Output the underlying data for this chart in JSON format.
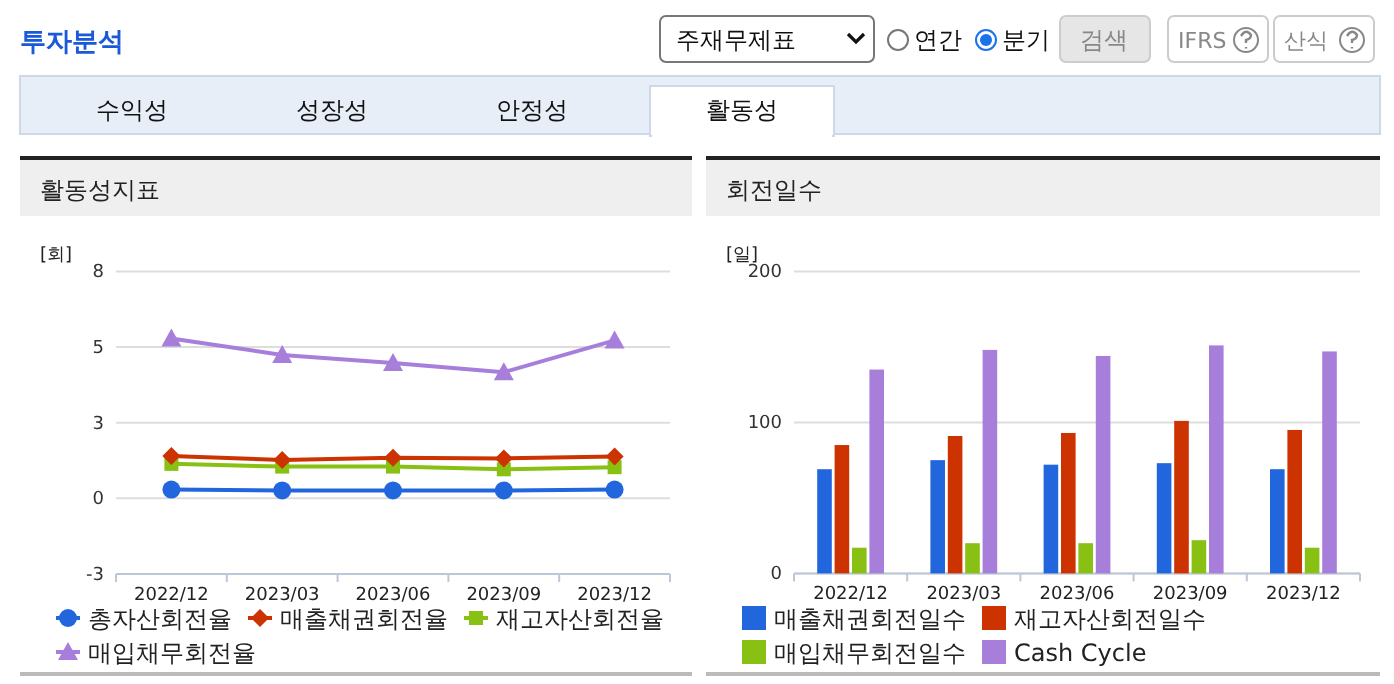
{
  "chart_data": [
    {
      "type": "other",
      "title": "투자분석",
      "annotations": [
        "주재무제표",
        "연간",
        "분기",
        "검색",
        "IFRS",
        "산식",
        "수익성",
        "성장성",
        "안정성",
        "활동성"
      ]
    },
    {
      "type": "line",
      "title": "활동성지표",
      "ylabel": "[회]",
      "categories": [
        "2022/12",
        "2023/03",
        "2023/06",
        "2023/09",
        "2023/12"
      ],
      "ylim": [
        -2.5,
        7.5
      ],
      "yticks": [
        {
          "value": -2.5,
          "label": "-3"
        },
        {
          "value": 0,
          "label": "0"
        },
        {
          "value": 2.5,
          "label": "3"
        },
        {
          "value": 5,
          "label": "5"
        },
        {
          "value": 7.5,
          "label": "8"
        }
      ],
      "grid": "y",
      "legend": "bottom",
      "series": [
        {
          "name": "총자산회전율",
          "color": "#2266dd",
          "marker": "circle",
          "values": [
            0.29,
            0.26,
            0.26,
            0.26,
            0.29
          ]
        },
        {
          "name": "매출채권회전율",
          "color": "#cc3300",
          "marker": "diamond",
          "values": [
            1.4,
            1.27,
            1.34,
            1.32,
            1.38
          ]
        },
        {
          "name": "재고자산회전율",
          "color": "#88c014",
          "marker": "square",
          "values": [
            1.14,
            1.05,
            1.05,
            0.96,
            1.03
          ]
        },
        {
          "name": "매입채무회전율",
          "color": "#a77fdb",
          "marker": "triangle",
          "values": [
            5.28,
            4.74,
            4.47,
            4.17,
            5.22
          ]
        }
      ]
    },
    {
      "type": "bar",
      "title": "회전일수",
      "ylabel": "[일]",
      "categories": [
        "2022/12",
        "2023/03",
        "2023/06",
        "2023/09",
        "2023/12"
      ],
      "ylim": [
        0,
        200
      ],
      "yticks": [
        0,
        100,
        200
      ],
      "grid": "y",
      "legend": "bottom",
      "series": [
        {
          "name": "매출채권회전일수",
          "color": "#2266dd",
          "values": [
            69,
            75,
            72,
            73,
            69
          ]
        },
        {
          "name": "재고자산회전일수",
          "color": "#cc3300",
          "values": [
            85,
            91,
            93,
            101,
            95
          ]
        },
        {
          "name": "매입채무회전일수",
          "color": "#88c014",
          "values": [
            17,
            20,
            20,
            22,
            17
          ]
        },
        {
          "name": "Cash Cycle",
          "color": "#a77fdb",
          "values": [
            135,
            148,
            144,
            151,
            147
          ]
        }
      ]
    }
  ]
}
